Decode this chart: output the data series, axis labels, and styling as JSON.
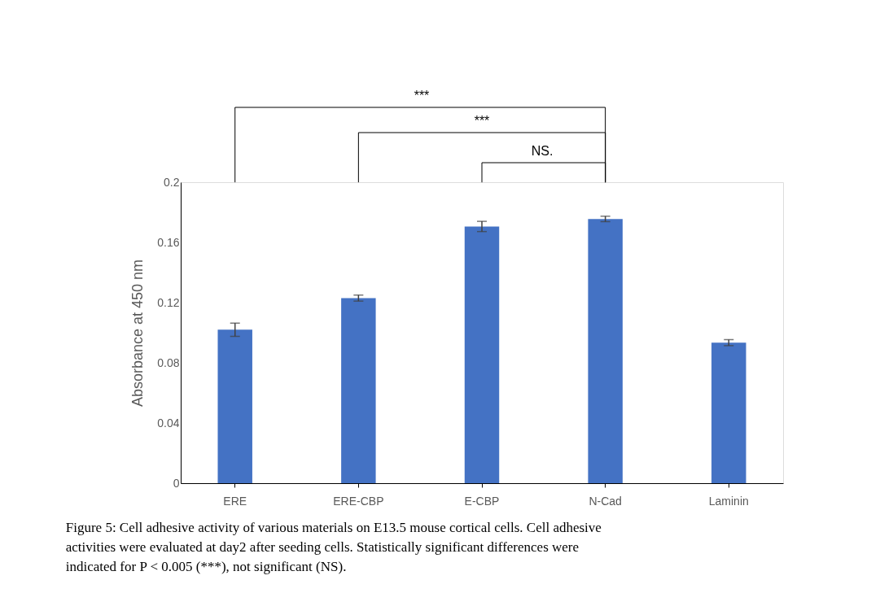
{
  "chart_data": {
    "type": "bar",
    "ylabel": "Absorbance at 450 nm",
    "categories": [
      "ERE",
      "ERE-CBP",
      "E-CBP",
      "N-Cad",
      "Laminin"
    ],
    "values": [
      0.102,
      0.123,
      0.1706,
      0.1756,
      0.0934
    ],
    "errors": [
      0.0044,
      0.002,
      0.0034,
      0.0018,
      0.002
    ],
    "color": "#4472c4",
    "ylim": [
      0,
      0.2
    ],
    "yticks": [
      0,
      0.04,
      0.08,
      0.12,
      0.16,
      0.2
    ],
    "grid": false,
    "annotations": [
      "***",
      "***",
      "NS.",
      "Figure 5: Cell adhesive activity of various materials on E13.5 mouse cortical cells. Cell adhesive activities were evaluated at day2 after seeding cells. Statistically significant differences were indicated for P < 0.005 (***), not significant (NS)."
    ]
  }
}
